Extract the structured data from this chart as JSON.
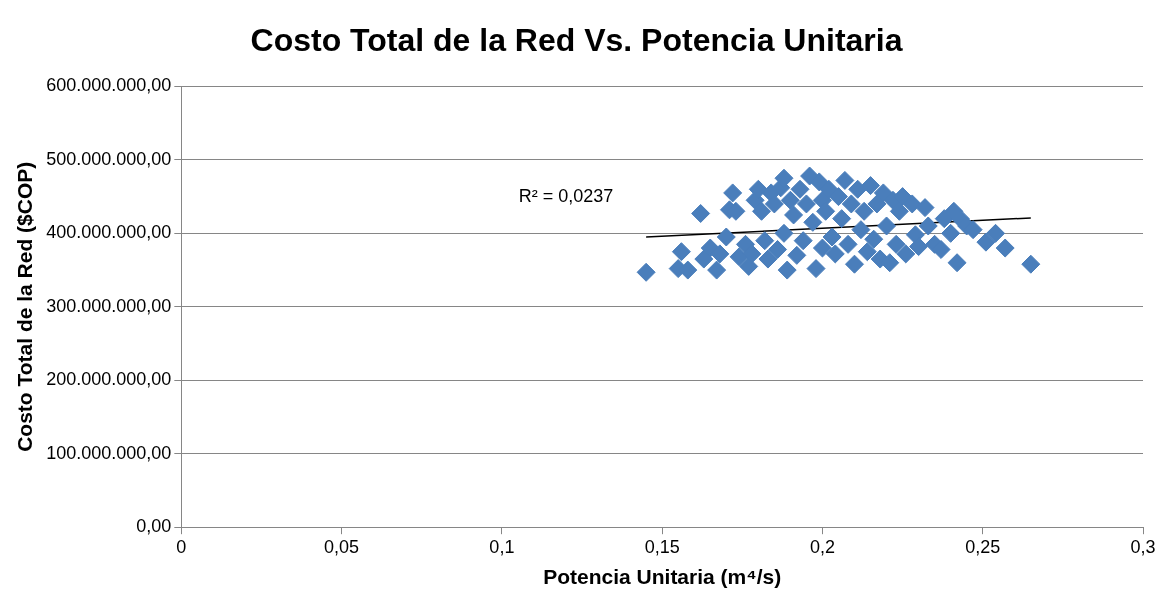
{
  "chart_data": {
    "type": "scatter",
    "title": "Costo Total de la Red Vs. Potencia Unitaria",
    "xlabel": "Potencia Unitaria (m⁴/s)",
    "ylabel": "Costo Total de la Red ($COP)",
    "xlim": [
      0,
      0.3
    ],
    "xticks": [
      0,
      {
        "value": 0.05,
        "label": "0,05"
      },
      {
        "value": 0.1,
        "label": "0,1"
      },
      {
        "value": 0.15,
        "label": "0,15"
      },
      {
        "value": 0.2,
        "label": "0,2"
      },
      {
        "value": 0.25,
        "label": "0,25"
      },
      {
        "value": 0.3,
        "label": "0,3"
      }
    ],
    "ylim": [
      0,
      600000000
    ],
    "yticks": [
      {
        "value": 0,
        "label": "0,00"
      },
      {
        "value": 100000000,
        "label": "100.000.000,00"
      },
      {
        "value": 200000000,
        "label": "200.000.000,00"
      },
      {
        "value": 300000000,
        "label": "300.000.000,00"
      },
      {
        "value": 400000000,
        "label": "400.000.000,00"
      },
      {
        "value": 500000000,
        "label": "500.000.000,00"
      },
      {
        "value": 600000000,
        "label": "600.000.000,00"
      }
    ],
    "grid": "y",
    "legend": false,
    "marker": "diamond",
    "series": [
      {
        "type": "scatter",
        "color": "#4a7ebb",
        "x": [
          0.145,
          0.155,
          0.156,
          0.158,
          0.162,
          0.163,
          0.165,
          0.167,
          0.168,
          0.17,
          0.171,
          0.172,
          0.173,
          0.174,
          0.176,
          0.177,
          0.178,
          0.179,
          0.18,
          0.181,
          0.182,
          0.183,
          0.184,
          0.185,
          0.186,
          0.187,
          0.188,
          0.188,
          0.189,
          0.19,
          0.191,
          0.192,
          0.193,
          0.194,
          0.195,
          0.196,
          0.197,
          0.198,
          0.199,
          0.2,
          0.2,
          0.201,
          0.202,
          0.203,
          0.204,
          0.205,
          0.206,
          0.207,
          0.208,
          0.209,
          0.21,
          0.211,
          0.212,
          0.213,
          0.214,
          0.215,
          0.216,
          0.217,
          0.218,
          0.219,
          0.22,
          0.221,
          0.222,
          0.223,
          0.224,
          0.225,
          0.226,
          0.228,
          0.229,
          0.23,
          0.232,
          0.233,
          0.235,
          0.237,
          0.238,
          0.24,
          0.241,
          0.242,
          0.243,
          0.245,
          0.247,
          0.251,
          0.254,
          0.257,
          0.265
        ],
        "values": [
          347000000,
          352000000,
          375000000,
          350000000,
          427000000,
          365000000,
          380000000,
          350000000,
          372000000,
          395000000,
          432000000,
          455000000,
          430000000,
          368000000,
          385000000,
          355000000,
          372000000,
          445000000,
          460000000,
          430000000,
          390000000,
          365000000,
          455000000,
          440000000,
          378000000,
          462000000,
          475000000,
          400000000,
          350000000,
          445000000,
          425000000,
          370000000,
          460000000,
          390000000,
          440000000,
          478000000,
          415000000,
          352000000,
          470000000,
          380000000,
          445000000,
          430000000,
          460000000,
          395000000,
          372000000,
          450000000,
          420000000,
          472000000,
          385000000,
          440000000,
          358000000,
          460000000,
          405000000,
          430000000,
          375000000,
          465000000,
          392000000,
          440000000,
          365000000,
          455000000,
          410000000,
          360000000,
          445000000,
          385000000,
          430000000,
          450000000,
          372000000,
          440000000,
          398000000,
          382000000,
          435000000,
          410000000,
          385000000,
          378000000,
          420000000,
          400000000,
          430000000,
          360000000,
          420000000,
          410000000,
          405000000,
          388000000,
          400000000,
          380000000,
          358000000
        ]
      },
      {
        "type": "line",
        "color": "#000000",
        "marker": "none",
        "x": [
          0.145,
          0.265
        ],
        "values": [
          395000000,
          421000000
        ]
      }
    ],
    "annotations": [
      "R² = 0,0237"
    ]
  }
}
